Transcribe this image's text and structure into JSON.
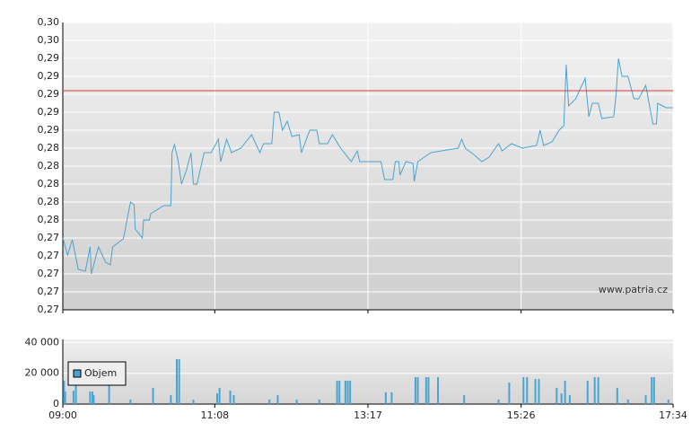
{
  "chart_data": [
    {
      "type": "line",
      "color": "#4aa3d0",
      "annotation": "www.patria.cz",
      "reference_line": 0.2899,
      "reference_color": "#d04040",
      "grid": true,
      "xlim": [
        "09:00",
        "17:34"
      ],
      "xticks": [
        "09:00",
        "11:08",
        "13:17",
        "15:26",
        "17:34"
      ],
      "ylim": [
        0.2655,
        0.2975
      ],
      "yticks": [
        {
          "value": 0.2655,
          "label": "0,27"
        },
        {
          "value": 0.2675,
          "label": "0,27"
        },
        {
          "value": 0.2695,
          "label": "0,27"
        },
        {
          "value": 0.2715,
          "label": "0,27"
        },
        {
          "value": 0.2735,
          "label": "0,27"
        },
        {
          "value": 0.2755,
          "label": "0,28"
        },
        {
          "value": 0.2775,
          "label": "0,28"
        },
        {
          "value": 0.2795,
          "label": "0,28"
        },
        {
          "value": 0.2815,
          "label": "0,28"
        },
        {
          "value": 0.2835,
          "label": "0,28"
        },
        {
          "value": 0.2855,
          "label": "0,29"
        },
        {
          "value": 0.2875,
          "label": "0,29"
        },
        {
          "value": 0.2895,
          "label": "0,29"
        },
        {
          "value": 0.2915,
          "label": "0,29"
        },
        {
          "value": 0.2935,
          "label": "0,29"
        },
        {
          "value": 0.2955,
          "label": "0,30"
        },
        {
          "value": 0.2975,
          "label": "0,30"
        }
      ],
      "x": [
        "09:00",
        "09:04",
        "09:08",
        "09:13",
        "09:19",
        "09:23",
        "09:24",
        "09:30",
        "09:36",
        "09:40",
        "09:42",
        "09:51",
        "09:57",
        "10:00",
        "10:01",
        "10:07",
        "10:08",
        "10:13",
        "10:14",
        "10:25",
        "10:31",
        "10:32",
        "10:34",
        "10:37",
        "10:40",
        "10:44",
        "10:48",
        "10:50",
        "10:53",
        "10:59",
        "11:05",
        "11:11",
        "11:13",
        "11:18",
        "11:22",
        "11:30",
        "11:39",
        "11:46",
        "11:49",
        "11:56",
        "11:58",
        "12:02",
        "12:05",
        "12:09",
        "12:13",
        "12:19",
        "12:21",
        "12:28",
        "12:34",
        "12:36",
        "12:43",
        "12:47",
        "12:54",
        "13:03",
        "13:08",
        "13:10",
        "13:28",
        "13:31",
        "13:38",
        "13:40",
        "13:43",
        "13:44",
        "13:49",
        "13:55",
        "13:56",
        "13:59",
        "14:10",
        "14:33",
        "14:36",
        "14:39",
        "14:46",
        "14:53",
        "14:59",
        "15:07",
        "15:10",
        "15:18",
        "15:27",
        "15:39",
        "15:42",
        "15:45",
        "15:52",
        "15:58",
        "16:02",
        "16:04",
        "16:06",
        "16:12",
        "16:20",
        "16:23",
        "16:26",
        "16:31",
        "16:34",
        "16:44",
        "16:46",
        "16:48",
        "16:51",
        "16:56",
        "17:01",
        "17:05",
        "17:11",
        "17:17",
        "17:20",
        "17:21",
        "17:28",
        "17:34"
      ],
      "values": [
        0.2735,
        0.2716,
        0.2733,
        0.27,
        0.2698,
        0.2725,
        0.2695,
        0.2725,
        0.2708,
        0.2705,
        0.2725,
        0.2734,
        0.2775,
        0.2772,
        0.2745,
        0.2735,
        0.2755,
        0.2755,
        0.2762,
        0.2771,
        0.2771,
        0.283,
        0.2839,
        0.2822,
        0.2795,
        0.281,
        0.283,
        0.2795,
        0.2795,
        0.283,
        0.283,
        0.2845,
        0.282,
        0.2845,
        0.283,
        0.2835,
        0.285,
        0.283,
        0.284,
        0.284,
        0.2875,
        0.2875,
        0.2855,
        0.2865,
        0.2848,
        0.285,
        0.283,
        0.2855,
        0.2855,
        0.284,
        0.284,
        0.285,
        0.2835,
        0.282,
        0.2832,
        0.282,
        0.282,
        0.28,
        0.28,
        0.282,
        0.282,
        0.2805,
        0.282,
        0.2818,
        0.2798,
        0.282,
        0.283,
        0.2835,
        0.2845,
        0.2835,
        0.2828,
        0.282,
        0.2825,
        0.284,
        0.2832,
        0.284,
        0.2835,
        0.2838,
        0.2855,
        0.2838,
        0.2842,
        0.2855,
        0.286,
        0.2928,
        0.2882,
        0.289,
        0.2913,
        0.287,
        0.2885,
        0.2885,
        0.2868,
        0.287,
        0.2895,
        0.2935,
        0.2915,
        0.2915,
        0.289,
        0.289,
        0.2905,
        0.2862,
        0.2862,
        0.2885,
        0.288,
        0.288
      ]
    },
    {
      "type": "bar",
      "grid": true,
      "legend": "upper-left",
      "xlim": [
        "09:00",
        "17:34"
      ],
      "xticks": [
        "09:00",
        "11:08",
        "13:17",
        "15:26",
        "17:34"
      ],
      "ylim": [
        0,
        42000
      ],
      "yticks": [
        0,
        {
          "value": 20000,
          "label": "20 000"
        },
        {
          "value": 40000,
          "label": "40 000"
        }
      ],
      "x": [
        "09:01",
        "09:02",
        "09:09",
        "09:11",
        "09:23",
        "09:25",
        "09:26",
        "09:39",
        "09:57",
        "10:16",
        "10:31",
        "10:36",
        "10:38",
        "10:50",
        "11:10",
        "11:12",
        "11:21",
        "11:24",
        "11:54",
        "12:01",
        "12:17",
        "12:36",
        "12:51",
        "12:53",
        "12:58",
        "13:00",
        "13:02",
        "13:32",
        "13:37",
        "13:57",
        "13:59",
        "14:06",
        "14:08",
        "14:16",
        "14:38",
        "15:07",
        "15:16",
        "15:28",
        "15:31",
        "15:38",
        "15:41",
        "15:56",
        "16:00",
        "16:03",
        "16:07",
        "16:22",
        "16:28",
        "16:31",
        "16:47",
        "16:56",
        "17:11",
        "17:16",
        "17:18",
        "17:30"
      ],
      "series": [
        {
          "name": "Objem",
          "color": "#4ba3d1",
          "values": [
            15200,
            8200,
            8700,
            19800,
            8200,
            8200,
            5800,
            15200,
            2900,
            10500,
            5800,
            29200,
            29200,
            2900,
            7000,
            10500,
            8700,
            5800,
            2900,
            5800,
            2900,
            2900,
            15200,
            15200,
            15200,
            15200,
            15200,
            7600,
            7600,
            17500,
            17500,
            17500,
            17500,
            17500,
            5800,
            2900,
            14000,
            17500,
            17500,
            16300,
            16300,
            10500,
            7000,
            15200,
            5800,
            15200,
            17500,
            17500,
            10500,
            2900,
            5800,
            17500,
            17500,
            2900
          ]
        }
      ]
    }
  ]
}
